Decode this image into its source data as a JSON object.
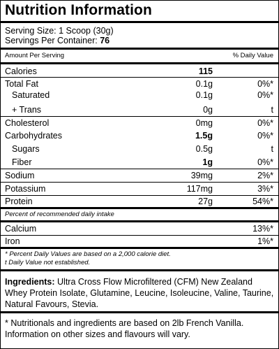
{
  "title": "Nutrition Information",
  "serving": {
    "size_label": "Serving Size: 1 Scoop (30g)",
    "per_container_label": "Servings Per Container:",
    "per_container_value": "76"
  },
  "header": {
    "amount_per_serving": "Amount Per Serving",
    "daily_value": "% Daily Value"
  },
  "rows": [
    {
      "label": "Calories",
      "amount": "115",
      "dv": ""
    },
    {
      "label": "Total Fat",
      "amount": "0.1g",
      "dv": "0%*"
    },
    {
      "label": "Saturated",
      "amount": "0.1g",
      "dv": "0%*"
    },
    {
      "label": "+ Trans",
      "amount": "0g",
      "dv": "t"
    },
    {
      "label": "Cholesterol",
      "amount": "0mg",
      "dv": "0%*"
    },
    {
      "label": "Carbohydrates",
      "amount": "1.5g",
      "dv": "0%*"
    },
    {
      "label": "Sugars",
      "amount": "0.5g",
      "dv": "t"
    },
    {
      "label": "Fiber",
      "amount": "1g",
      "dv": "0%*"
    },
    {
      "label": "Sodium",
      "amount": "39mg",
      "dv": "2%*"
    },
    {
      "label": "Potassium",
      "amount": "117mg",
      "dv": "3%*"
    },
    {
      "label": "Protein",
      "amount": "27g",
      "dv": "54%*"
    }
  ],
  "recommended_note": "Percent of recommended daily intake",
  "minerals": [
    {
      "label": "Calcium",
      "dv": "13%*"
    },
    {
      "label": "Iron",
      "dv": "1%*"
    }
  ],
  "footnotes": {
    "daily_values": "* Percent Daily Values are based on a 2,000 calorie diet.",
    "not_established": "t Daily Value not established."
  },
  "ingredients": {
    "label": "Ingredients:",
    "text": "Ultra Cross Flow Microfiltered (CFM) New Zealand Whey Protein Isolate, Glutamine, Leucine, Isoleucine, Valine, Taurine, Natural Favours, Stevia."
  },
  "disclaimer": "* Nutritionals and ingredients are based on 2lb French Vanilla. Information on other sizes and flavours will vary."
}
